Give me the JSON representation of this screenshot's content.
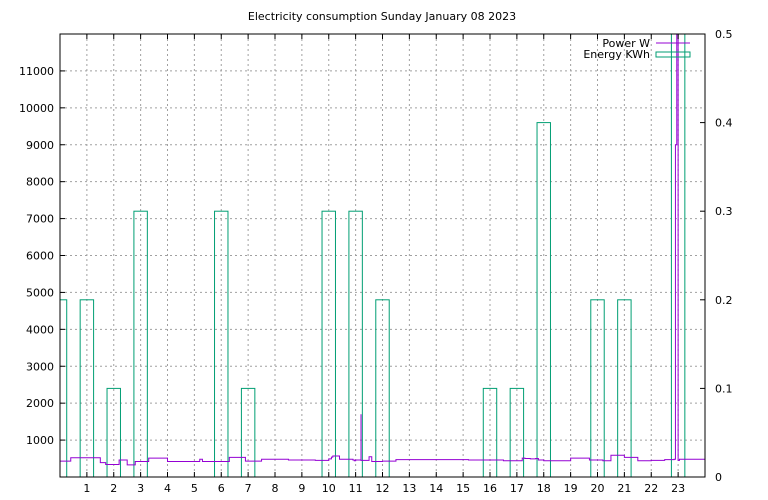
{
  "chart_data": {
    "type": "line",
    "title": "Electricity consumption Sunday January 08 2023",
    "x_ticks": [
      "1",
      "2",
      "3",
      "4",
      "5",
      "6",
      "7",
      "8",
      "9",
      "10",
      "11",
      "12",
      "13",
      "14",
      "15",
      "16",
      "17",
      "18",
      "19",
      "20",
      "21",
      "22",
      "23"
    ],
    "xlim": [
      0,
      24
    ],
    "y_left_ticks": [
      "1000",
      "2000",
      "3000",
      "4000",
      "5000",
      "6000",
      "7000",
      "8000",
      "9000",
      "10000",
      "11000"
    ],
    "ylim_left": [
      0,
      12000
    ],
    "y_right_ticks": [
      "0",
      "0.1",
      "0.2",
      "0.3",
      "0.4",
      "0.5"
    ],
    "ylim_right": [
      0,
      0.5
    ],
    "grid": true,
    "legend_position": "top-right",
    "colors": {
      "power": "#9400d3",
      "energy": "#009e73"
    },
    "series": [
      {
        "name": "Power W",
        "axis": "left",
        "style": "steps",
        "x": [
          0,
          0.4,
          1.5,
          1.7,
          2.2,
          2.5,
          2.8,
          3.3,
          4.0,
          5.2,
          5.3,
          6.3,
          6.9,
          7.5,
          8.5,
          9.5,
          10.0,
          10.1,
          10.15,
          10.4,
          10.9,
          10.95,
          11.0,
          11.2,
          11.5,
          11.6,
          12.0,
          12.5,
          14.0,
          15.2,
          16.5,
          17.2,
          17.3,
          17.5,
          17.7,
          17.8,
          18.0,
          19.0,
          19.7,
          20.2,
          20.5,
          21.0,
          21.5,
          22.0,
          22.5,
          22.85,
          22.9,
          22.95,
          23.0,
          23.05,
          24.0
        ],
        "y": [
          430,
          520,
          390,
          340,
          460,
          330,
          420,
          510,
          420,
          480,
          420,
          530,
          430,
          480,
          460,
          450,
          490,
          540,
          570,
          480,
          460,
          440,
          460,
          450,
          550,
          420,
          430,
          470,
          470,
          460,
          440,
          510,
          500,
          490,
          500,
          460,
          440,
          510,
          460,
          440,
          590,
          530,
          440,
          450,
          470,
          480,
          9000,
          12000,
          450,
          480,
          460
        ]
      },
      {
        "name": "Energy KWh",
        "axis": "right",
        "style": "impulse-boxes",
        "hours": [
          0,
          1,
          2,
          3,
          6,
          7,
          10,
          11,
          12,
          16,
          17,
          18,
          20,
          21,
          23
        ],
        "values": [
          0.2,
          0.2,
          0.1,
          0.3,
          0.3,
          0.1,
          0.3,
          0.3,
          0.2,
          0.1,
          0.1,
          0.4,
          0.2,
          0.2,
          0.5
        ]
      }
    ]
  }
}
